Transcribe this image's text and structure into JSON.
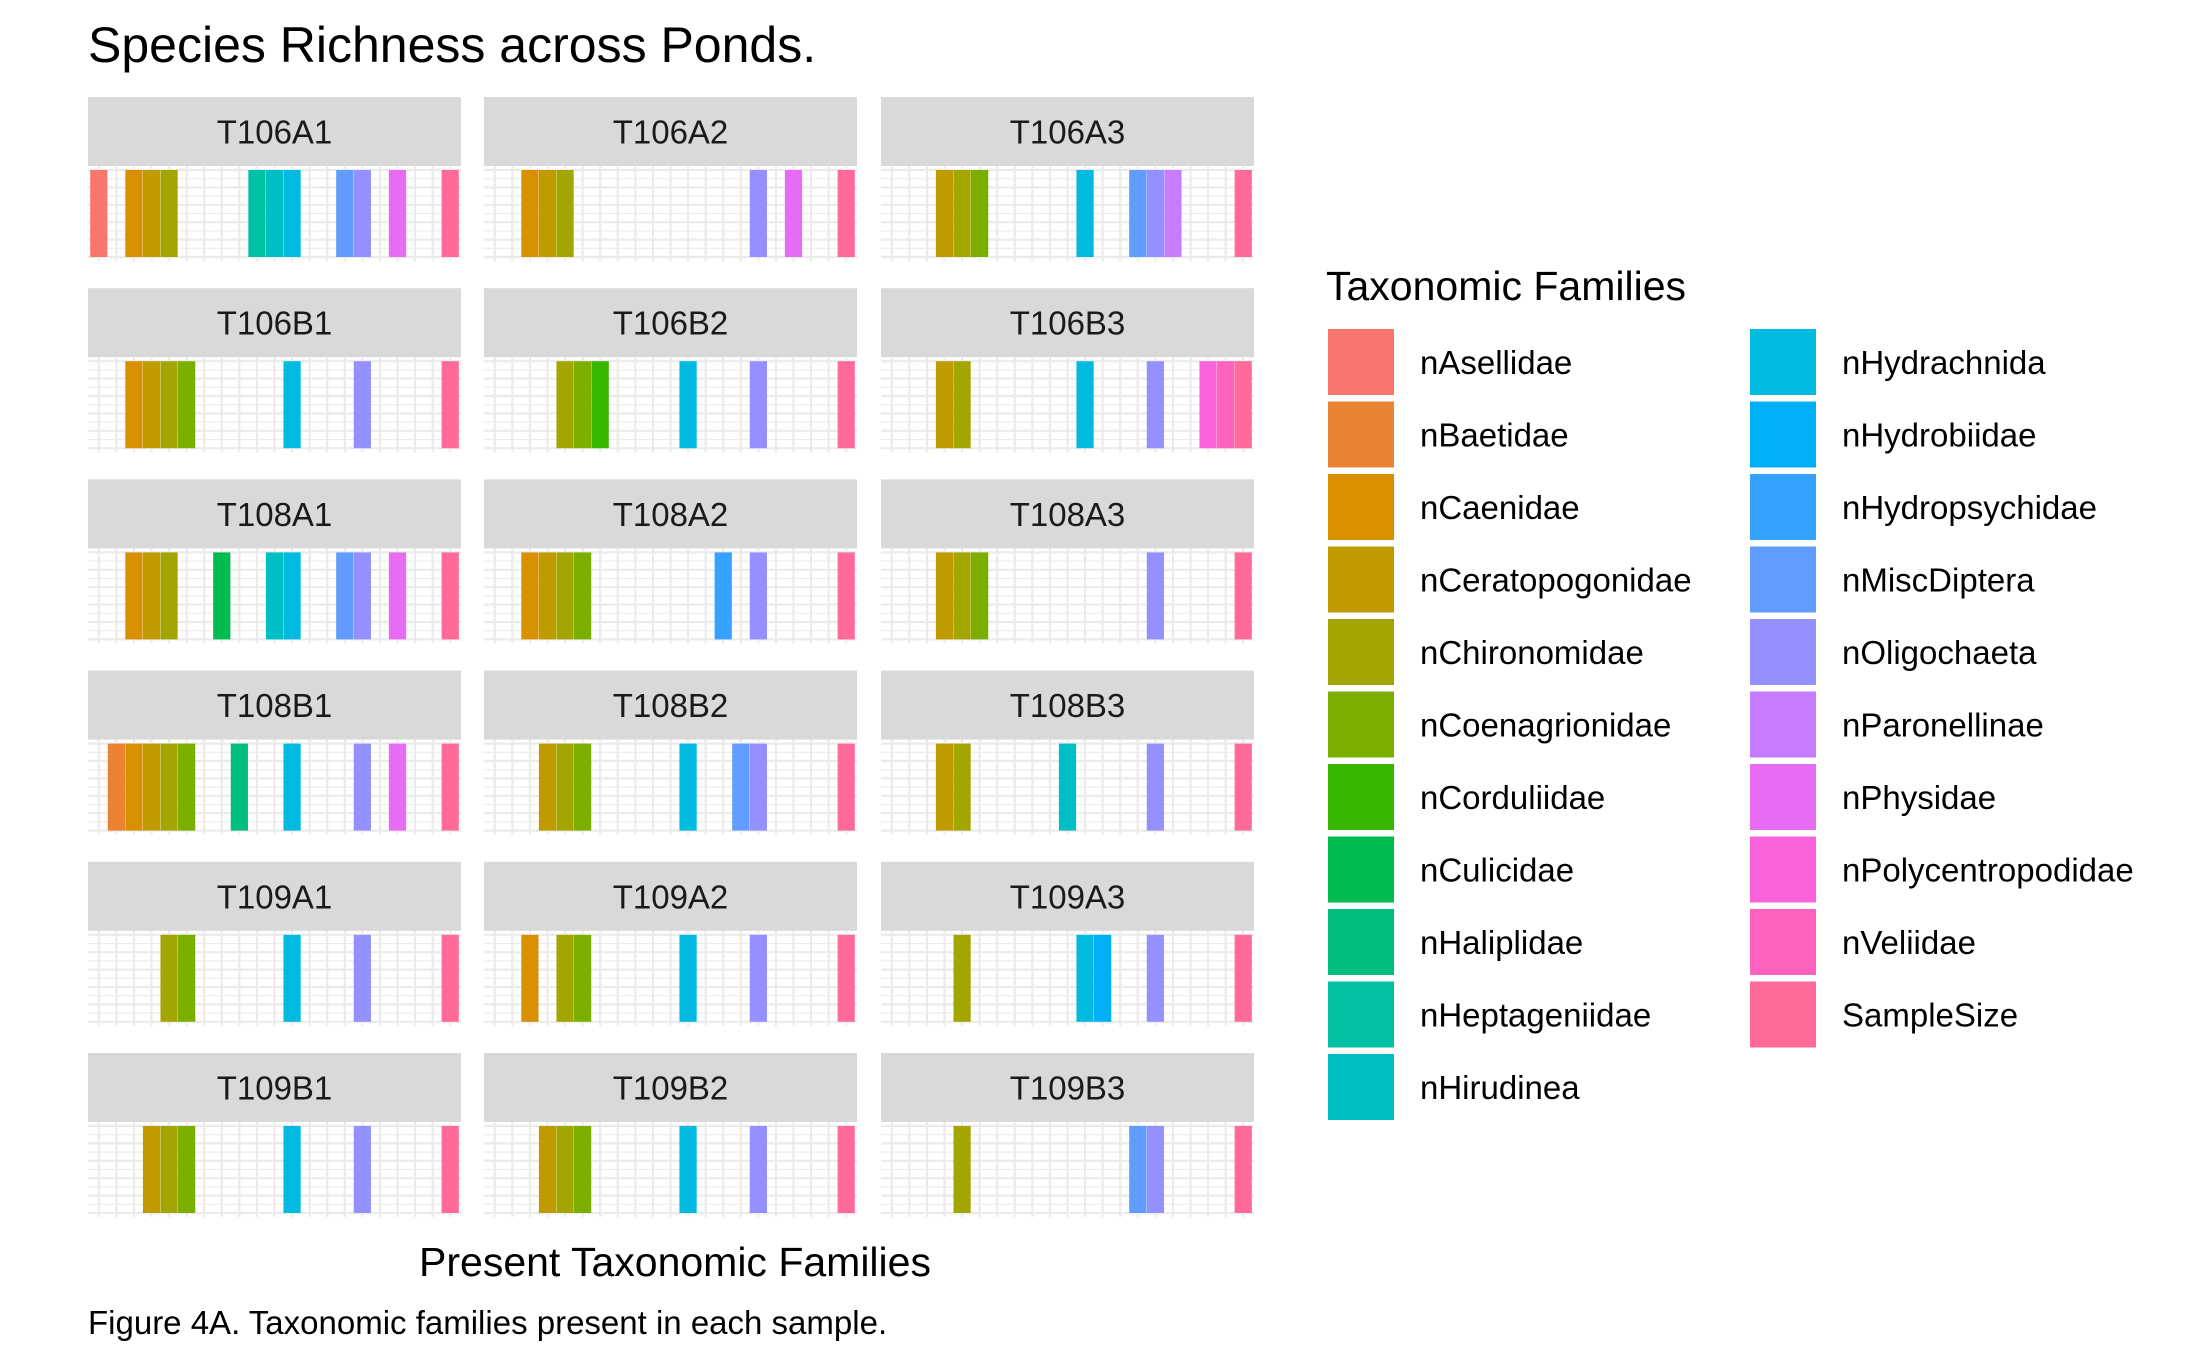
{
  "chart_data": {
    "type": "bar",
    "title": "Species Richness across Ponds.",
    "xlabel": "Present Taxonomic Families",
    "ylabel": "",
    "caption": "Figure 4A. Taxonomic families present in each sample.",
    "legend_title": "Taxonomic Families",
    "legend_position": "right",
    "grid": true,
    "categories": [
      "nAsellidae",
      "nBaetidae",
      "nCaenidae",
      "nCeratopogonidae",
      "nChironomidae",
      "nCoenagrionidae",
      "nCorduliidae",
      "nCulicidae",
      "nHaliplidae",
      "nHeptageniidae",
      "nHirudinea",
      "nHydrachnida",
      "nHydrobiidae",
      "nHydropsychidae",
      "nMiscDiptera",
      "nOligochaeta",
      "nParonellinae",
      "nPhysidae",
      "nPolycentropodidae",
      "nVeliidae",
      "SampleSize"
    ],
    "colors": [
      "#F8766D",
      "#EA8331",
      "#D89000",
      "#C09B00",
      "#A3A500",
      "#7CAE00",
      "#39B600",
      "#00BB4E",
      "#00BF7D",
      "#00C1A3",
      "#00BFC4",
      "#00BAE0",
      "#00B0F6",
      "#35A2FF",
      "#619CFF",
      "#9590FF",
      "#C77CFF",
      "#E76BF3",
      "#FA62DB",
      "#FF62BC",
      "#FF6A98"
    ],
    "panels": [
      {
        "label": "T106A1",
        "present": [
          0,
          2,
          3,
          4,
          9,
          10,
          11,
          14,
          15,
          17,
          20
        ]
      },
      {
        "label": "T106A2",
        "present": [
          2,
          3,
          4,
          15,
          17,
          20
        ]
      },
      {
        "label": "T106A3",
        "present": [
          3,
          4,
          5,
          11,
          14,
          15,
          16,
          20
        ]
      },
      {
        "label": "T106B1",
        "present": [
          2,
          3,
          4,
          5,
          11,
          15,
          20
        ]
      },
      {
        "label": "T106B2",
        "present": [
          4,
          5,
          6,
          11,
          15,
          20
        ]
      },
      {
        "label": "T106B3",
        "present": [
          3,
          4,
          11,
          15,
          18,
          19,
          20
        ]
      },
      {
        "label": "T108A1",
        "present": [
          2,
          3,
          4,
          7,
          10,
          11,
          14,
          15,
          17,
          20
        ]
      },
      {
        "label": "T108A2",
        "present": [
          2,
          3,
          4,
          5,
          13,
          15,
          20
        ]
      },
      {
        "label": "T108A3",
        "present": [
          3,
          4,
          5,
          15,
          20
        ]
      },
      {
        "label": "T108B1",
        "present": [
          1,
          2,
          3,
          4,
          5,
          8,
          11,
          15,
          17,
          20
        ]
      },
      {
        "label": "T108B2",
        "present": [
          3,
          4,
          5,
          11,
          14,
          15,
          20
        ]
      },
      {
        "label": "T108B3",
        "present": [
          3,
          4,
          10,
          15,
          20
        ]
      },
      {
        "label": "T109A1",
        "present": [
          4,
          5,
          11,
          15,
          20
        ]
      },
      {
        "label": "T109A2",
        "present": [
          2,
          4,
          5,
          11,
          15,
          20
        ]
      },
      {
        "label": "T109A3",
        "present": [
          4,
          11,
          12,
          15,
          20
        ]
      },
      {
        "label": "T109B1",
        "present": [
          3,
          4,
          5,
          11,
          15,
          20
        ]
      },
      {
        "label": "T109B2",
        "present": [
          3,
          4,
          5,
          11,
          15,
          20
        ]
      },
      {
        "label": "T109B3",
        "present": [
          4,
          14,
          15,
          20
        ]
      }
    ]
  }
}
